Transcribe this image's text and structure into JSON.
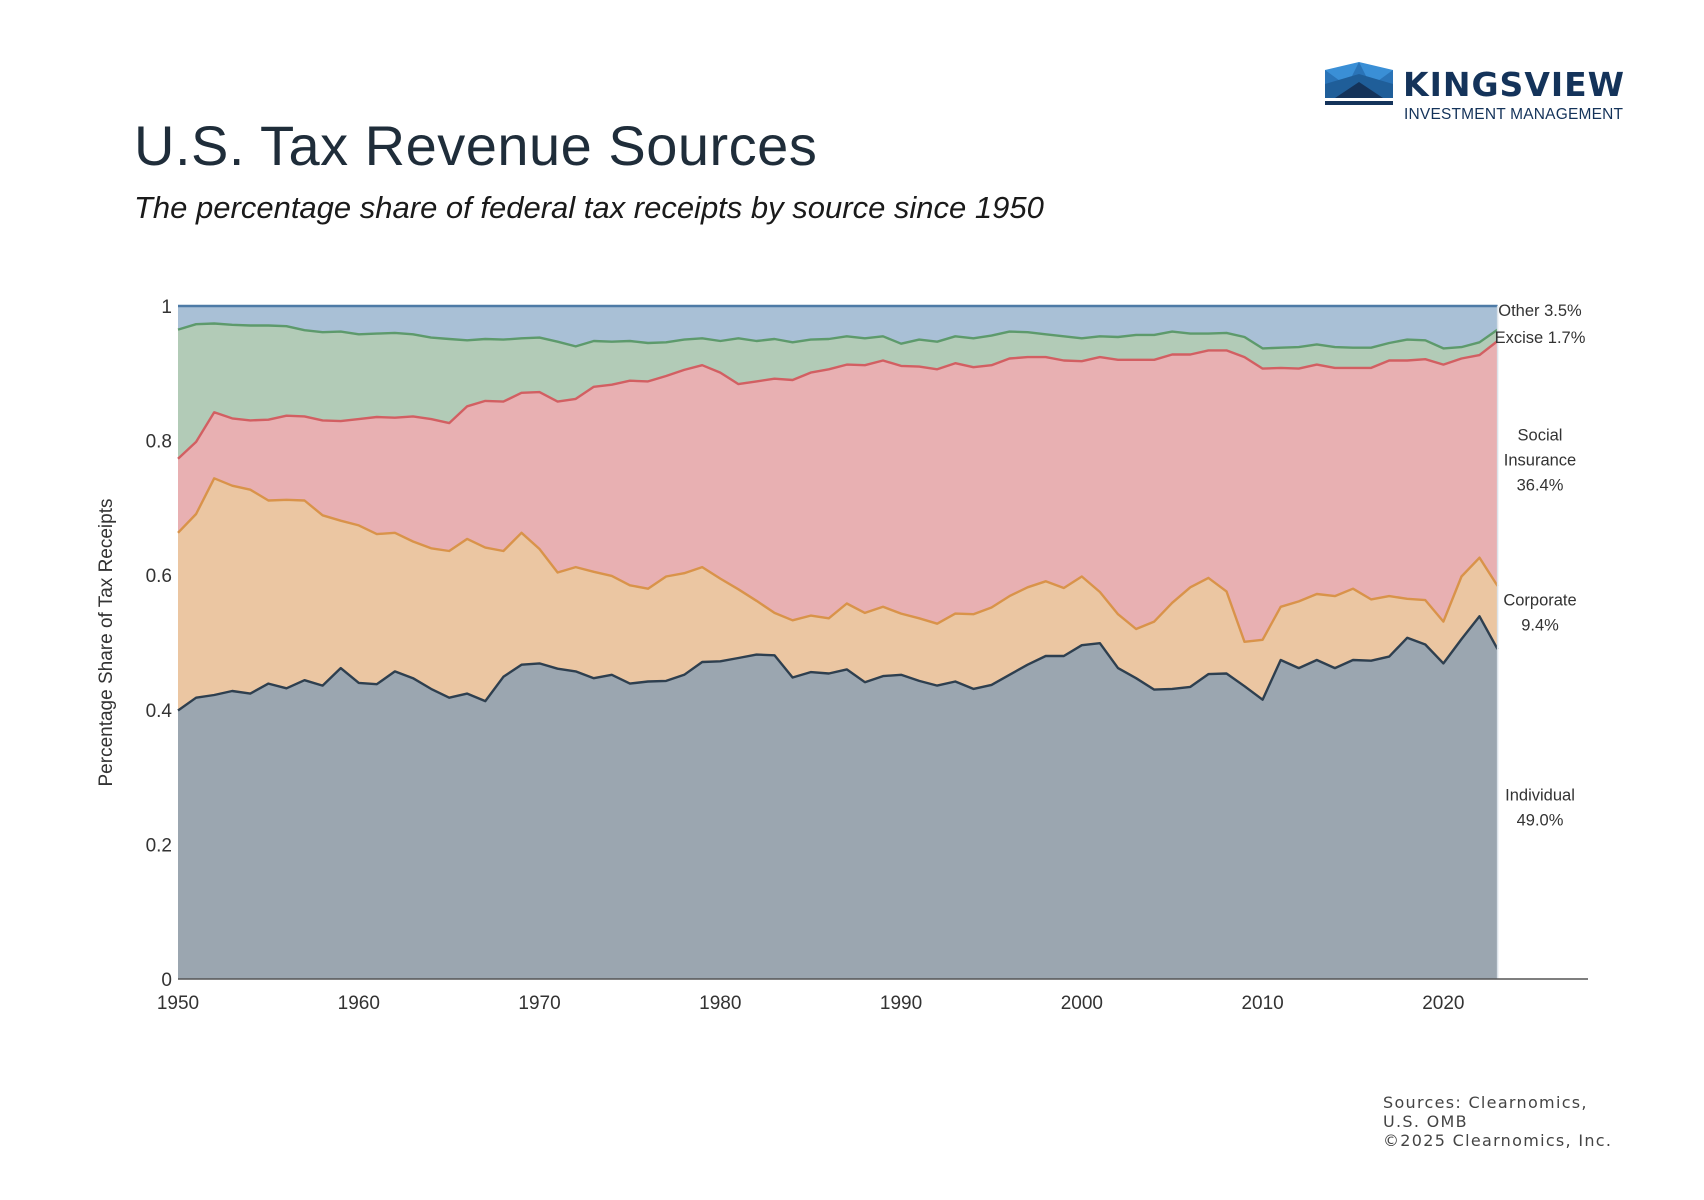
{
  "header": {
    "title": "U.S. Tax Revenue Sources",
    "subtitle": "The percentage share of federal tax receipts by source since 1950"
  },
  "logo": {
    "name": "KINGSVIEW",
    "tagline": "INVESTMENT MANAGEMENT",
    "icon": "crown-icon",
    "colors": {
      "dark": "#14335a",
      "mid": "#1f5e99",
      "light": "#3a8fd6"
    }
  },
  "footer": {
    "lines": [
      "Sources: Clearnomics,",
      "U.S. OMB",
      "©2025 Clearnomics, Inc."
    ]
  },
  "chart_data": {
    "type": "area",
    "stacked": true,
    "title": "U.S. Tax Revenue Sources",
    "subtitle": "The percentage share of federal tax receipts by source since 1950",
    "xlabel": "",
    "ylabel": "Percentage Share of Tax Receipts",
    "xlim": [
      1950,
      2028
    ],
    "ylim": [
      0,
      1
    ],
    "x_ticks": [
      1950,
      1960,
      1970,
      1980,
      1990,
      2000,
      2010,
      2020
    ],
    "y_ticks": [
      0,
      0.2,
      0.4,
      0.6,
      0.8,
      1
    ],
    "y_tick_labels": [
      "0",
      "0.2",
      "0.4",
      "0.6",
      "0.8",
      "1"
    ],
    "grid": false,
    "legend": "right-inline",
    "x": [
      1950,
      1951,
      1952,
      1953,
      1954,
      1955,
      1956,
      1957,
      1958,
      1959,
      1960,
      1961,
      1962,
      1963,
      1964,
      1965,
      1966,
      1967,
      1968,
      1969,
      1970,
      1971,
      1972,
      1973,
      1974,
      1975,
      1976,
      1977,
      1978,
      1979,
      1980,
      1981,
      1982,
      1983,
      1984,
      1985,
      1986,
      1987,
      1988,
      1989,
      1990,
      1991,
      1992,
      1993,
      1994,
      1995,
      1996,
      1997,
      1998,
      1999,
      2000,
      2001,
      2002,
      2003,
      2004,
      2005,
      2006,
      2007,
      2008,
      2009,
      2010,
      2011,
      2012,
      2013,
      2014,
      2015,
      2016,
      2017,
      2018,
      2019,
      2020,
      2021,
      2022,
      2023
    ],
    "series": [
      {
        "name": "Individual",
        "label": "Individual",
        "label_value": "49.0%",
        "fill": "#9ba6b0",
        "stroke": "#2e3f4f",
        "values": [
          0.399,
          0.418,
          0.422,
          0.428,
          0.424,
          0.439,
          0.432,
          0.444,
          0.436,
          0.462,
          0.44,
          0.438,
          0.457,
          0.447,
          0.431,
          0.418,
          0.424,
          0.413,
          0.449,
          0.467,
          0.469,
          0.461,
          0.457,
          0.447,
          0.452,
          0.439,
          0.442,
          0.443,
          0.452,
          0.471,
          0.472,
          0.477,
          0.482,
          0.481,
          0.448,
          0.456,
          0.454,
          0.46,
          0.441,
          0.45,
          0.452,
          0.443,
          0.436,
          0.442,
          0.431,
          0.437,
          0.452,
          0.467,
          0.48,
          0.48,
          0.496,
          0.499,
          0.462,
          0.447,
          0.43,
          0.431,
          0.434,
          0.453,
          0.454,
          0.435,
          0.415,
          0.474,
          0.462,
          0.474,
          0.462,
          0.474,
          0.473,
          0.479,
          0.507,
          0.497,
          0.469,
          0.505,
          0.539,
          0.49
        ]
      },
      {
        "name": "Corporate",
        "label": "Corporate",
        "label_value": "9.4%",
        "fill": "#ebc6a2",
        "stroke": "#d9934a",
        "values": [
          0.264,
          0.273,
          0.322,
          0.305,
          0.303,
          0.272,
          0.28,
          0.267,
          0.253,
          0.219,
          0.234,
          0.223,
          0.206,
          0.203,
          0.209,
          0.218,
          0.23,
          0.228,
          0.187,
          0.196,
          0.17,
          0.143,
          0.155,
          0.158,
          0.147,
          0.146,
          0.138,
          0.155,
          0.151,
          0.141,
          0.123,
          0.102,
          0.08,
          0.063,
          0.085,
          0.084,
          0.082,
          0.098,
          0.103,
          0.103,
          0.091,
          0.093,
          0.092,
          0.101,
          0.111,
          0.115,
          0.117,
          0.115,
          0.111,
          0.101,
          0.102,
          0.076,
          0.08,
          0.073,
          0.101,
          0.128,
          0.148,
          0.143,
          0.122,
          0.066,
          0.089,
          0.079,
          0.099,
          0.098,
          0.107,
          0.106,
          0.091,
          0.09,
          0.058,
          0.066,
          0.062,
          0.093,
          0.087,
          0.094
        ]
      },
      {
        "name": "Social Insurance",
        "label": "Social Insurance",
        "label_value": "36.4%",
        "fill": "#e8b0b2",
        "stroke": "#d25f62",
        "values": [
          0.11,
          0.107,
          0.098,
          0.1,
          0.103,
          0.12,
          0.125,
          0.125,
          0.141,
          0.148,
          0.158,
          0.174,
          0.171,
          0.186,
          0.192,
          0.19,
          0.197,
          0.218,
          0.222,
          0.208,
          0.233,
          0.254,
          0.25,
          0.275,
          0.284,
          0.304,
          0.308,
          0.298,
          0.302,
          0.3,
          0.306,
          0.305,
          0.326,
          0.348,
          0.357,
          0.361,
          0.37,
          0.355,
          0.368,
          0.366,
          0.368,
          0.374,
          0.378,
          0.372,
          0.367,
          0.36,
          0.353,
          0.342,
          0.333,
          0.338,
          0.32,
          0.349,
          0.378,
          0.4,
          0.389,
          0.369,
          0.346,
          0.338,
          0.358,
          0.423,
          0.403,
          0.355,
          0.346,
          0.341,
          0.339,
          0.328,
          0.344,
          0.35,
          0.354,
          0.358,
          0.382,
          0.324,
          0.301,
          0.364
        ]
      },
      {
        "name": "Excise",
        "label": "Excise",
        "label_value": "1.7%",
        "fill": "#b2cbb7",
        "stroke": "#5d9a6c",
        "values": [
          0.192,
          0.175,
          0.132,
          0.139,
          0.141,
          0.14,
          0.133,
          0.128,
          0.131,
          0.133,
          0.126,
          0.124,
          0.126,
          0.122,
          0.121,
          0.125,
          0.098,
          0.092,
          0.092,
          0.081,
          0.081,
          0.089,
          0.078,
          0.068,
          0.064,
          0.059,
          0.057,
          0.05,
          0.045,
          0.04,
          0.047,
          0.068,
          0.06,
          0.059,
          0.056,
          0.049,
          0.045,
          0.042,
          0.04,
          0.036,
          0.033,
          0.04,
          0.041,
          0.04,
          0.043,
          0.044,
          0.04,
          0.037,
          0.034,
          0.036,
          0.034,
          0.031,
          0.034,
          0.037,
          0.037,
          0.034,
          0.031,
          0.025,
          0.026,
          0.03,
          0.03,
          0.03,
          0.032,
          0.03,
          0.031,
          0.03,
          0.03,
          0.026,
          0.031,
          0.028,
          0.024,
          0.017,
          0.019,
          0.017
        ]
      },
      {
        "name": "Other",
        "label": "Other",
        "label_value": "3.5%",
        "fill": "#a9c0d6",
        "stroke": "#4d7aa6",
        "values": [
          0.035,
          0.027,
          0.026,
          0.028,
          0.029,
          0.029,
          0.03,
          0.036,
          0.039,
          0.038,
          0.042,
          0.041,
          0.04,
          0.042,
          0.047,
          0.049,
          0.051,
          0.049,
          0.05,
          0.048,
          0.047,
          0.053,
          0.06,
          0.052,
          0.053,
          0.052,
          0.055,
          0.054,
          0.05,
          0.048,
          0.052,
          0.048,
          0.052,
          0.049,
          0.054,
          0.05,
          0.049,
          0.045,
          0.048,
          0.045,
          0.056,
          0.05,
          0.053,
          0.045,
          0.048,
          0.044,
          0.038,
          0.039,
          0.042,
          0.045,
          0.048,
          0.045,
          0.046,
          0.043,
          0.043,
          0.038,
          0.041,
          0.041,
          0.04,
          0.046,
          0.063,
          0.062,
          0.061,
          0.057,
          0.061,
          0.062,
          0.062,
          0.055,
          0.05,
          0.051,
          0.063,
          0.061,
          0.054,
          0.035
        ]
      }
    ]
  }
}
